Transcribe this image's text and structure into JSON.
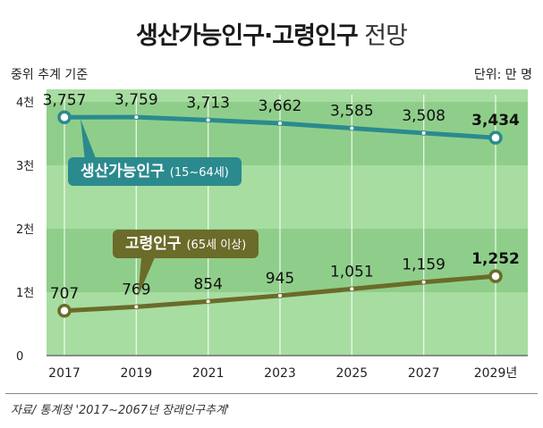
{
  "title": {
    "bold": "생산가능인구·고령인구",
    "light": "전망"
  },
  "subtitle_left": "중위 추계 기준",
  "unit_label": "단위: 만 명",
  "source": "자료/ 통계청 '2017~2067년 장래인구추계'",
  "colors": {
    "plot_bg": "#a7dda0",
    "band": "#8fce8a",
    "working_line": "#2b8a8e",
    "elderly_line": "#6b6b2a",
    "grid": "#ffffff"
  },
  "chart_data": {
    "type": "line",
    "x": [
      "2017",
      "2019",
      "2021",
      "2023",
      "2025",
      "2027",
      "2029년"
    ],
    "ylim": [
      0,
      4000
    ],
    "yticks": [
      {
        "value": 0,
        "label": "0"
      },
      {
        "value": 1000,
        "label": "1천"
      },
      {
        "value": 2000,
        "label": "2천"
      },
      {
        "value": 3000,
        "label": "3천"
      },
      {
        "value": 4000,
        "label": "4천"
      }
    ],
    "grid": true,
    "series": [
      {
        "key": "working",
        "name": "생산가능인구",
        "note": "(15~64세)",
        "values": [
          3757,
          3759,
          3713,
          3662,
          3585,
          3508,
          3434
        ],
        "labels": [
          "3,757",
          "3,759",
          "3,713",
          "3,662",
          "3,585",
          "3,508",
          "3,434"
        ]
      },
      {
        "key": "elderly",
        "name": "고령인구",
        "note": "(65세 이상)",
        "values": [
          707,
          769,
          854,
          945,
          1051,
          1159,
          1252
        ],
        "labels": [
          "707",
          "769",
          "854",
          "945",
          "1,051",
          "1,159",
          "1,252"
        ]
      }
    ]
  }
}
